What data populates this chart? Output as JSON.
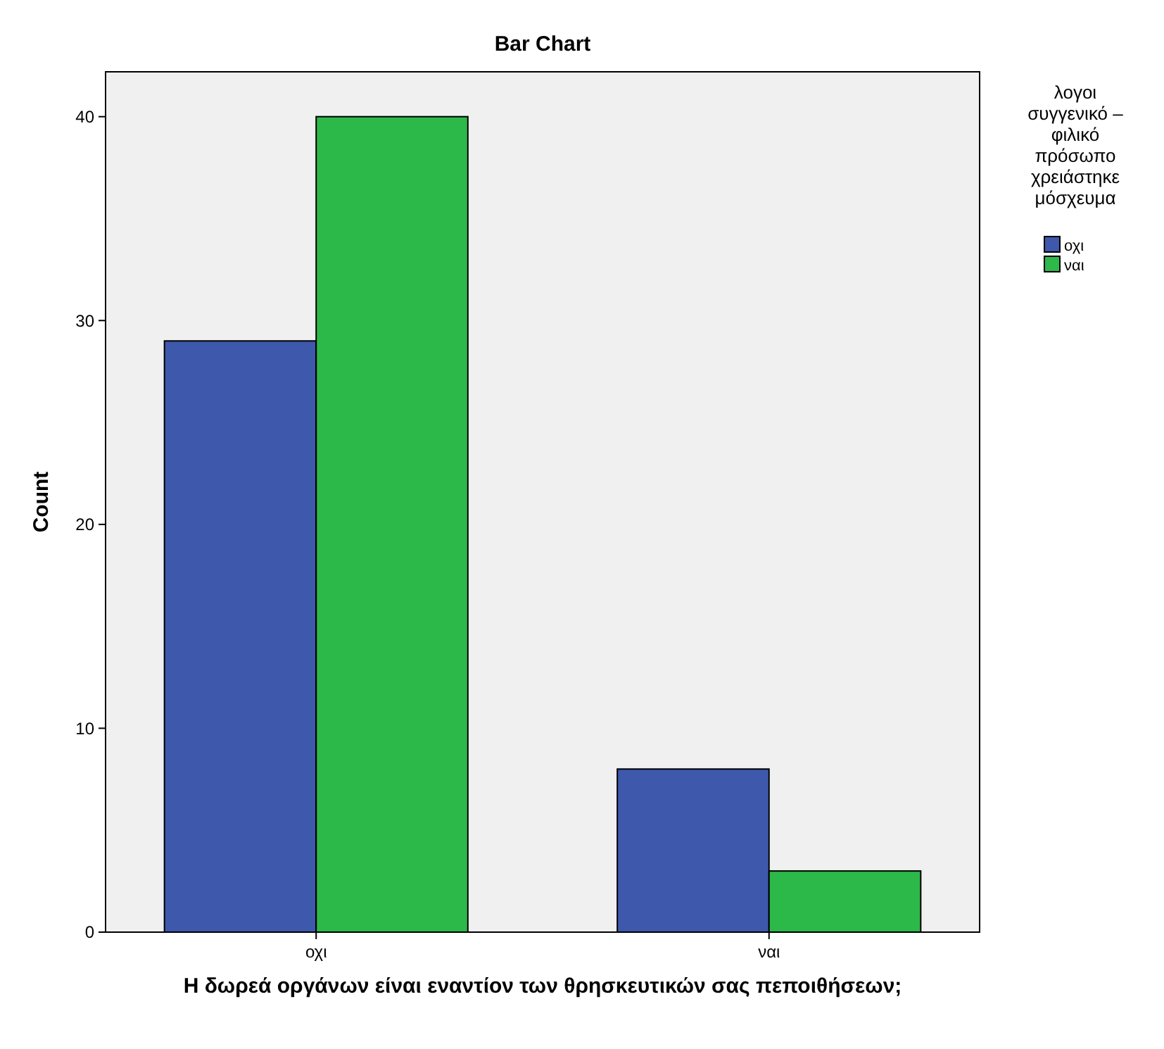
{
  "chart_data": {
    "type": "bar",
    "title": "Bar Chart",
    "xlabel": "Η δωρεά οργάνων είναι εναντίον των θρησκευτικών σας πεποιθήσεων;",
    "ylabel": "Count",
    "legend_title": "λογοι συγγενικό – φιλικό πρόσωπο χρειάστηκε μόσχευμα",
    "categories": [
      "οχι",
      "ναι"
    ],
    "series": [
      {
        "name": "οχι",
        "color": "#3e58ac",
        "values": [
          29,
          8
        ]
      },
      {
        "name": "ναι",
        "color": "#2db84a",
        "values": [
          40,
          3
        ]
      }
    ],
    "ylim": [
      0,
      42.2
    ],
    "yticks": [
      0,
      10,
      20,
      30,
      40
    ],
    "grid": false,
    "legend": "right"
  }
}
